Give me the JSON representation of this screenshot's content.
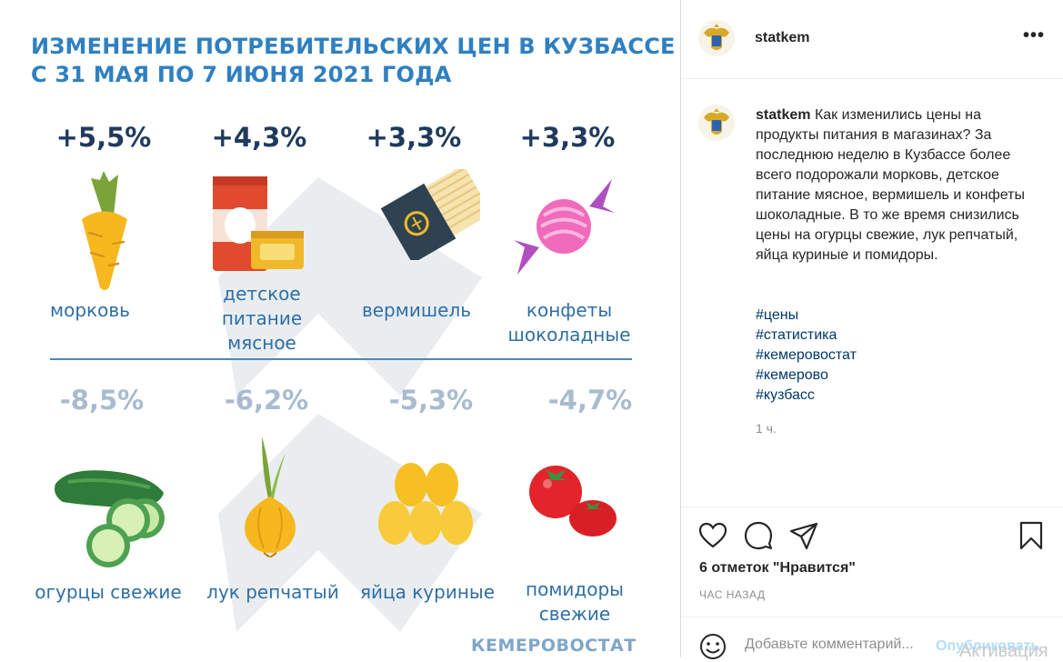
{
  "infographic": {
    "title_line1": "ИЗМЕНЕНИЕ ПОТРЕБИТЕЛЬСКИХ ЦЕН В КУЗБАССЕ",
    "title_line2": "С 31 МАЯ ПО 7 ИЮНЯ 2021 ГОДА",
    "increases": [
      {
        "value": "+5,5%",
        "label": "морковь",
        "icon": "carrot-icon"
      },
      {
        "value": "+4,3%",
        "label": "детское питание мясное",
        "icon": "baby-food-can-icon"
      },
      {
        "value": "+3,3%",
        "label": "вермишель",
        "icon": "pasta-pack-icon"
      },
      {
        "value": "+3,3%",
        "label": "конфеты шоколадные",
        "icon": "candy-icon"
      }
    ],
    "decreases": [
      {
        "value": "-8,5%",
        "label": "огурцы свежие",
        "icon": "cucumber-icon"
      },
      {
        "value": "-6,2%",
        "label": "лук репчатый",
        "icon": "onion-icon"
      },
      {
        "value": "-5,3%",
        "label": "яйца куриные",
        "icon": "eggs-icon"
      },
      {
        "value": "-4,7%",
        "label": "помидоры свежие",
        "icon": "tomato-icon"
      }
    ],
    "brand": "КЕМЕРОВОСТАТ",
    "colors": {
      "title": "#2f80c1",
      "increase": "#1f3a5c",
      "decrease": "#a8bbd0",
      "label": "#2f6fa6"
    }
  },
  "post": {
    "username": "statkem",
    "more_icon": "more-options-icon",
    "caption": "Как изменились цены на продукты питания в магазинах? За последнюю неделю в Кузбассе более всего подорожали морковь, детское питание мясное, вермишель и конфеты шоколадные. В то же время снизились цены на огурцы свежие, лук репчатый, яйца куриные и помидоры.",
    "hashtags": [
      "#цены",
      "#статистика",
      "#кемеровостат",
      "#кемерово",
      "#кузбасс"
    ],
    "caption_age": "1 ч.",
    "likes_text": "6 отметок \"Нравится\"",
    "time_text": "ЧАС НАЗАД",
    "comment_placeholder": "Добавьте комментарий...",
    "post_button": "Опубликовать",
    "watermark": "Активация"
  }
}
